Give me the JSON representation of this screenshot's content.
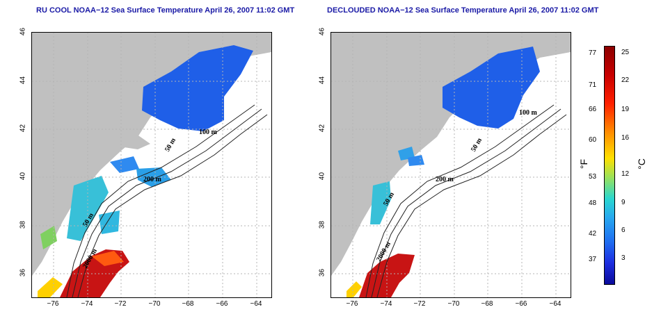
{
  "titles": {
    "left": "RU COOL NOAA−12 Sea Surface Temperature April 26, 2007 11:02 GMT",
    "right": "DECLOUDED NOAA−12 Sea Surface Temperature April 26, 2007 11:02 GMT"
  },
  "axes": {
    "lat_ticks": [
      "46",
      "44",
      "42",
      "40",
      "38",
      "36"
    ],
    "lon_ticks": [
      "−76",
      "−74",
      "−72",
      "−70",
      "−68",
      "−66",
      "−64"
    ]
  },
  "contour_labels": {
    "c50": "50 m",
    "c100": "100 m",
    "c200": "200 m",
    "c2000": "2000 m"
  },
  "colorbar": {
    "fahrenheit_unit": "°F",
    "celsius_unit": "°C",
    "fahrenheit_ticks": [
      "77",
      "71",
      "66",
      "60",
      "53",
      "48",
      "42",
      "37"
    ],
    "celsius_ticks": [
      "25",
      "22",
      "19",
      "16",
      "12",
      "9",
      "6",
      "3"
    ]
  },
  "colors": {
    "land": "#c0c0c0",
    "cold": "#1f5fe8",
    "warm": "#c81414",
    "grid": "#b4b4b4"
  }
}
